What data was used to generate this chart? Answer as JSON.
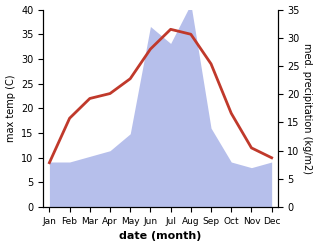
{
  "months": [
    "Jan",
    "Feb",
    "Mar",
    "Apr",
    "May",
    "Jun",
    "Jul",
    "Aug",
    "Sep",
    "Oct",
    "Nov",
    "Dec"
  ],
  "temperature": [
    9,
    18,
    22,
    23,
    26,
    32,
    36,
    35,
    29,
    19,
    12,
    10
  ],
  "precipitation": [
    8,
    8,
    9,
    10,
    13,
    32,
    29,
    36,
    14,
    8,
    7,
    8
  ],
  "temp_color": "#c0392b",
  "precip_color": "#aab4e8",
  "temp_ylim": [
    0,
    40
  ],
  "precip_ylim": [
    0,
    35
  ],
  "xlabel": "date (month)",
  "ylabel_left": "max temp (C)",
  "ylabel_right": "med. precipitation (kg/m2)",
  "temp_linewidth": 2.0,
  "background_color": "#ffffff"
}
